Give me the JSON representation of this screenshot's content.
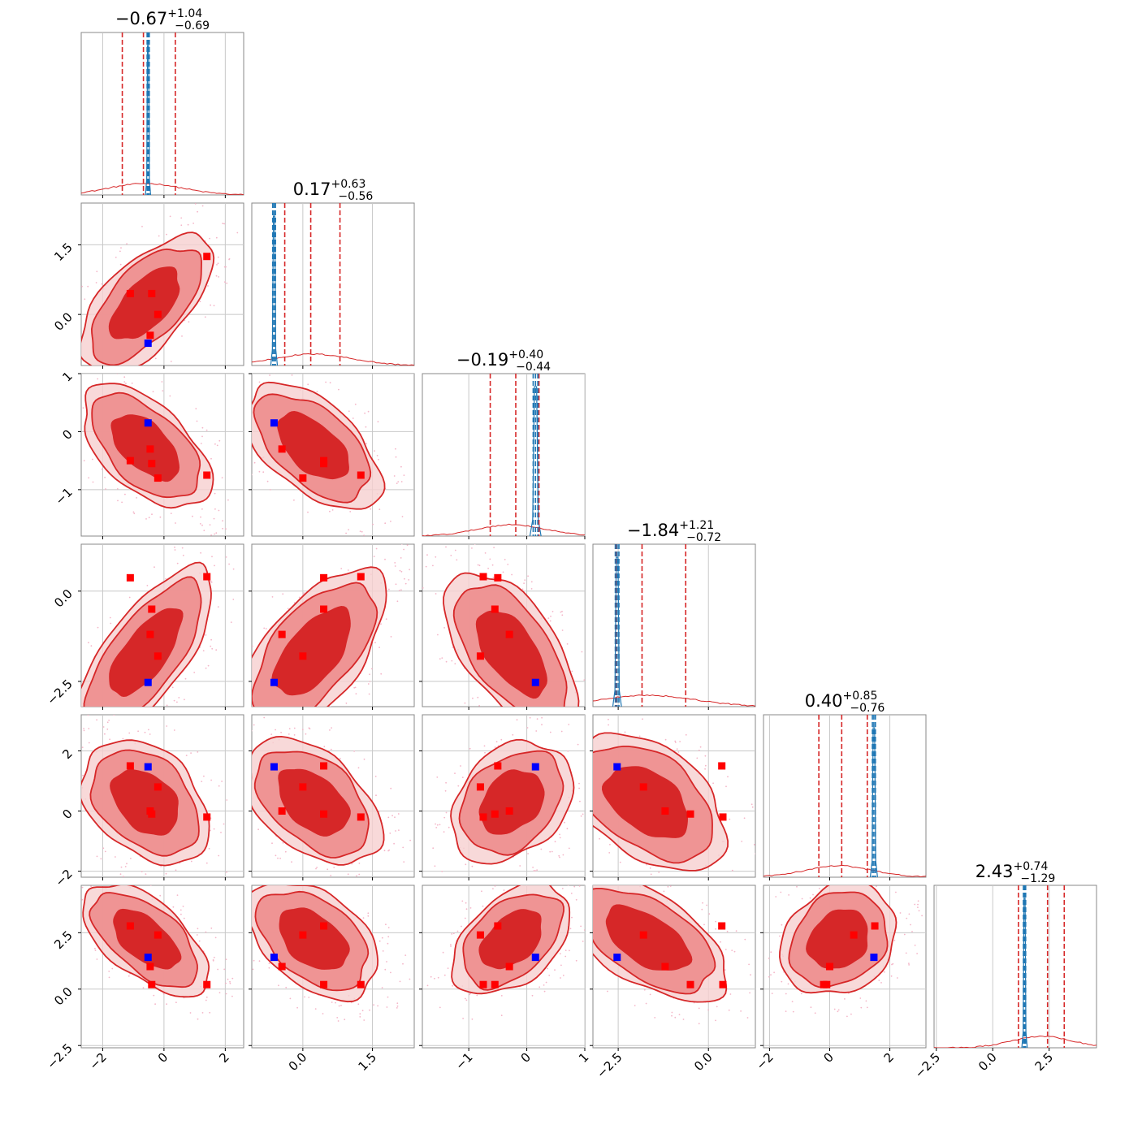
{
  "chart_data": {
    "type": "corner",
    "n_params": 6,
    "grid": true,
    "colors": {
      "posterior": "#d62728",
      "posterior_fill_inner": "#d62728",
      "posterior_fill_outer": "#ee9090",
      "narrow_posterior": "#1f77b4",
      "truth_markers": "#ff0000",
      "reference_marker": "#0000ff",
      "scatter": "#f4b6c8"
    },
    "titles": [
      {
        "median": "−0.67",
        "plus": "+1.04",
        "minus": "−0.69"
      },
      {
        "median": "0.17",
        "plus": "+0.63",
        "minus": "−0.56"
      },
      {
        "median": "−0.19",
        "plus": "+0.40",
        "minus": "−0.44"
      },
      {
        "median": "−1.84",
        "plus": "+1.21",
        "minus": "−0.72"
      },
      {
        "median": "0.40",
        "plus": "+0.85",
        "minus": "−0.76"
      },
      {
        "median": "2.43",
        "plus": "+0.74",
        "minus": "−1.29"
      }
    ],
    "ranges": [
      [
        -2.7,
        2.6
      ],
      [
        -1.1,
        2.4
      ],
      [
        -1.8,
        1.0
      ],
      [
        -3.2,
        1.3
      ],
      [
        -2.2,
        3.2
      ],
      [
        -2.6,
        4.6
      ]
    ],
    "ticks": [
      {
        "values": [
          -2,
          0,
          2
        ],
        "labels": [
          "−2",
          "0",
          "2"
        ]
      },
      {
        "values": [
          0.0,
          1.5
        ],
        "labels": [
          "0.0",
          "1.5"
        ]
      },
      {
        "values": [
          -1,
          0,
          1
        ],
        "labels": [
          "−1",
          "0",
          "1"
        ]
      },
      {
        "values": [
          -2.5,
          0.0
        ],
        "labels": [
          "−2.5",
          "0.0"
        ]
      },
      {
        "values": [
          -2,
          0,
          2
        ],
        "labels": [
          "−2",
          "0",
          "2"
        ]
      },
      {
        "values": [
          -2.5,
          0.0,
          2.5
        ],
        "labels": [
          "−2.5",
          "0.0",
          "2.5"
        ]
      }
    ],
    "quantile_lines_red": [
      [
        -1.36,
        -0.67,
        0.37
      ],
      [
        -0.39,
        0.17,
        0.8
      ],
      [
        -0.63,
        -0.19,
        0.21
      ],
      [
        -2.56,
        -1.84,
        -0.63
      ],
      [
        -0.36,
        0.4,
        1.25
      ],
      [
        1.14,
        2.43,
        3.17
      ]
    ],
    "quantile_lines_blue": [
      [
        -0.55,
        -0.52,
        -0.48
      ],
      [
        -0.65,
        -0.62,
        -0.59
      ],
      [
        0.11,
        0.15,
        0.19
      ],
      [
        -2.58,
        -2.53,
        -2.48
      ],
      [
        1.42,
        1.47,
        1.52
      ],
      [
        1.36,
        1.41,
        1.46
      ]
    ],
    "posterior_center": [
      -0.6,
      0.22,
      -0.26,
      -1.7,
      0.3,
      2.2
    ],
    "posterior_sd": [
      0.85,
      0.6,
      0.42,
      0.95,
      0.8,
      0.95
    ],
    "correlations": [
      [
        1.0,
        0.62,
        -0.55,
        0.72,
        -0.35,
        -0.6
      ],
      [
        0.62,
        1.0,
        -0.55,
        0.62,
        -0.45,
        -0.45
      ],
      [
        -0.55,
        -0.55,
        1.0,
        -0.62,
        0.3,
        0.45
      ],
      [
        0.72,
        0.62,
        -0.62,
        1.0,
        -0.45,
        -0.6
      ],
      [
        -0.35,
        -0.45,
        0.3,
        -0.45,
        1.0,
        0.2
      ],
      [
        -0.6,
        -0.45,
        0.45,
        -0.6,
        0.2,
        1.0
      ]
    ],
    "truth_points": [
      [
        -1.1,
        0.45,
        -0.5,
        0.37,
        1.5
      ],
      [
        -0.2,
        0.0,
        -0.8,
        -1.8,
        0.8
      ],
      [
        -0.45,
        -0.45,
        -0.3,
        -1.2,
        0.0
      ],
      [
        -0.4,
        0.45,
        -0.55,
        -0.5,
        -0.1
      ],
      [
        1.4,
        1.25,
        -0.75,
        0.4,
        -0.2
      ]
    ],
    "truth_points_p6": [
      2.8,
      2.4,
      1.0,
      0.2,
      0.2
    ],
    "reference_point": [
      -0.52,
      -0.62,
      0.15,
      -2.53,
      1.47,
      1.41
    ]
  }
}
